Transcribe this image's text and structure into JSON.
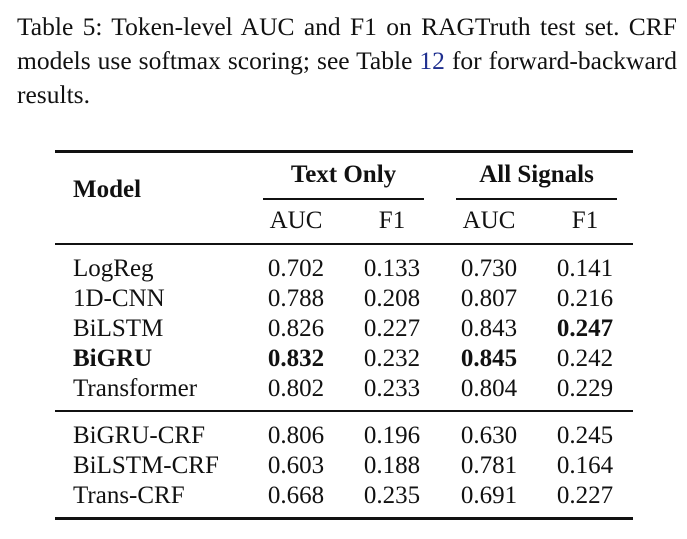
{
  "caption": {
    "label": "Table 5:",
    "text_before_ref": " Token-level AUC and F1 on RAGTruth test set. CRF models use softmax scoring; see Table ",
    "ref": "12",
    "text_after_ref": " for forward-backward results."
  },
  "table": {
    "model_header": "Model",
    "group_headers": [
      "Text Only",
      "All Signals"
    ],
    "sub_headers": [
      "AUC",
      "F1",
      "AUC",
      "F1"
    ],
    "group1_rows": [
      {
        "model": "LogReg",
        "values": [
          "0.702",
          "0.133",
          "0.730",
          "0.141"
        ]
      },
      {
        "model": "1D-CNN",
        "values": [
          "0.788",
          "0.208",
          "0.807",
          "0.216"
        ]
      },
      {
        "model": "BiLSTM",
        "values": [
          "0.826",
          "0.227",
          "0.843",
          "0.247"
        ]
      },
      {
        "model": "BiGRU",
        "values": [
          "0.832",
          "0.232",
          "0.845",
          "0.242"
        ]
      },
      {
        "model": "Transformer",
        "values": [
          "0.802",
          "0.233",
          "0.804",
          "0.229"
        ]
      }
    ],
    "group2_rows": [
      {
        "model": "BiGRU-CRF",
        "values": [
          "0.806",
          "0.196",
          "0.630",
          "0.245"
        ]
      },
      {
        "model": "BiLSTM-CRF",
        "values": [
          "0.603",
          "0.188",
          "0.781",
          "0.164"
        ]
      },
      {
        "model": "Trans-CRF",
        "values": [
          "0.668",
          "0.235",
          "0.691",
          "0.227"
        ]
      }
    ]
  }
}
